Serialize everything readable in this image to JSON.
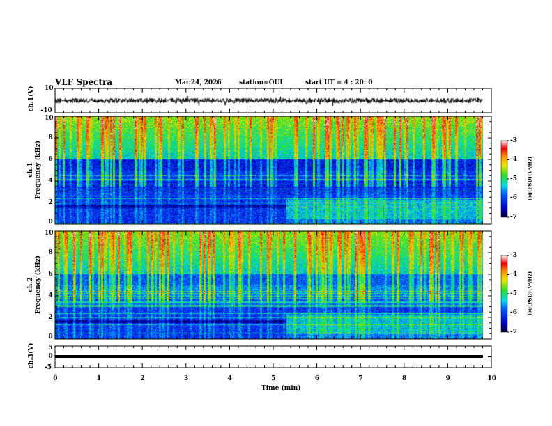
{
  "header": {
    "title": "VLF Spectra",
    "date": "Mar.24, 2026",
    "station": "station=OUI",
    "start": "start  UT =   4 : 20: 0"
  },
  "chart_data": [
    {
      "type": "line",
      "name": "ch1-waveform",
      "ylabel": "ch.1(V)",
      "ylim": [
        -10,
        10
      ],
      "yticks": [
        "10",
        "-10"
      ],
      "baseline": 0,
      "amplitude": 2
    },
    {
      "type": "heatmap",
      "name": "ch1-spectrogram",
      "ylabel": "ch.1\nFrequency  (kHz)",
      "ylabel_top": "ch.1",
      "ylabel_bottom": "Frequency  (kHz)",
      "ylim": [
        0,
        10
      ],
      "yticks": [
        "0",
        "2",
        "4",
        "6",
        "8",
        "10"
      ],
      "colorbar": {
        "label": "log(PSD)(V²/Hz)",
        "range": [
          -7,
          -3
        ],
        "ticks": [
          "-3",
          "-4",
          "-5",
          "-6",
          "-7"
        ]
      },
      "data_end_min": 9.8,
      "transition_min": 5.3
    },
    {
      "type": "heatmap",
      "name": "ch2-spectrogram",
      "ylabel_top": "ch.2",
      "ylabel_bottom": "Frequency  (kHz)",
      "ylim": [
        0,
        10
      ],
      "yticks": [
        "0",
        "2",
        "4",
        "6",
        "8",
        "10"
      ],
      "colorbar": {
        "label": "log(PSD)(V²/Hz)",
        "range": [
          -7,
          -3
        ],
        "ticks": [
          "-3",
          "-4",
          "-5",
          "-6",
          "-7"
        ]
      },
      "data_end_min": 9.8,
      "transition_min": 5.3
    },
    {
      "type": "line",
      "name": "ch3-waveform",
      "ylabel": "ch.3(V)",
      "ylim": [
        -5,
        5
      ],
      "yticks": [
        "5",
        "0",
        "-5"
      ],
      "value": 1.5
    },
    {
      "xlabel": "Time  (min)",
      "xlim": [
        0,
        10
      ],
      "xticks": [
        "0",
        "1",
        "2",
        "3",
        "4",
        "5",
        "6",
        "7",
        "8",
        "9",
        "10"
      ]
    }
  ]
}
